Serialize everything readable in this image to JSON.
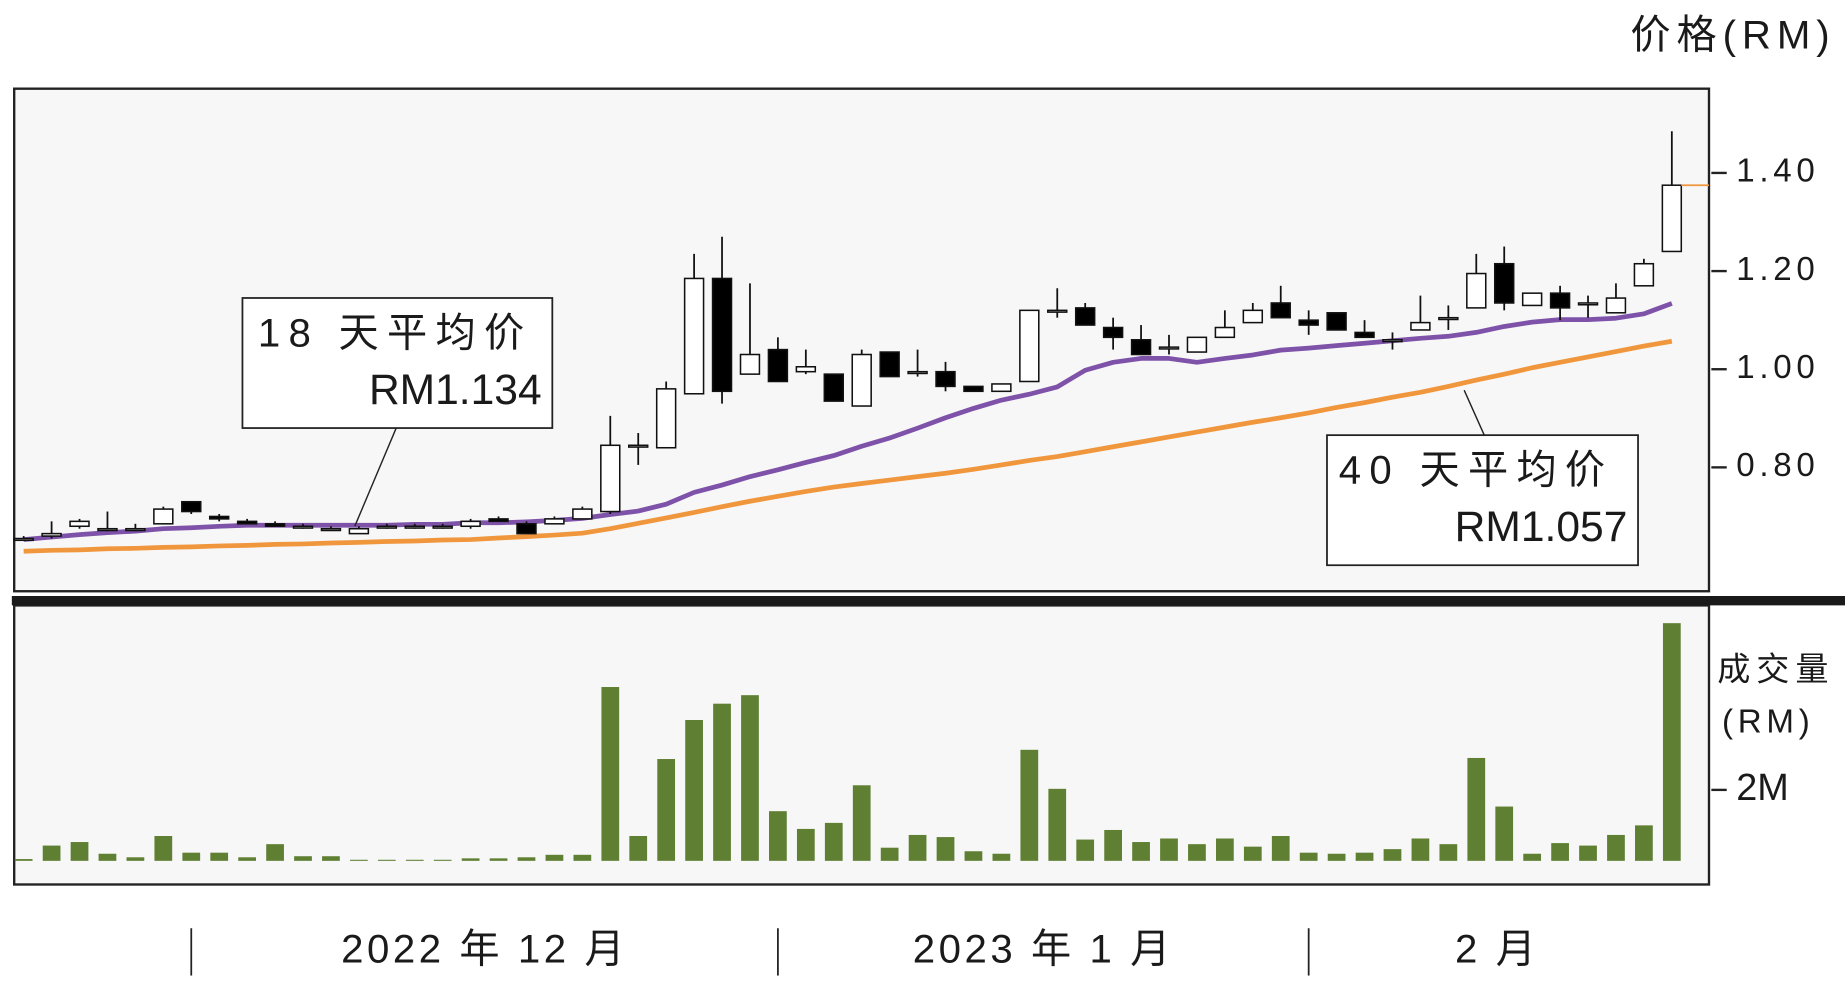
{
  "chart_data": [
    {
      "type": "candlestick",
      "title": "价格(RM)",
      "categories": [
        null,
        null,
        null,
        null,
        null,
        null,
        null,
        null,
        null,
        null,
        null,
        null,
        null,
        null,
        null,
        null,
        null,
        null,
        null,
        null,
        null,
        null,
        null,
        null,
        null,
        null,
        null,
        null,
        null,
        null,
        null,
        null,
        null,
        null,
        null,
        null,
        null,
        null,
        null,
        null,
        null,
        null,
        null,
        null,
        null,
        null,
        null,
        null,
        null,
        null,
        null,
        null,
        null,
        null,
        null,
        null,
        null,
        null,
        null,
        null
      ],
      "open": [
        0.655,
        0.66,
        0.68,
        0.675,
        0.675,
        0.685,
        0.73,
        0.7,
        0.69,
        0.685,
        0.68,
        0.675,
        0.665,
        0.68,
        0.68,
        0.68,
        0.68,
        0.695,
        0.685,
        0.685,
        0.695,
        0.71,
        0.845,
        0.84,
        0.95,
        1.185,
        0.99,
        1.04,
        0.995,
        0.99,
        0.925,
        1.035,
        0.995,
        0.995,
        0.965,
        0.955,
        0.975,
        1.12,
        1.125,
        1.085,
        1.06,
        1.045,
        1.035,
        1.065,
        1.095,
        1.135,
        1.1,
        1.115,
        1.075,
        1.06,
        1.08,
        1.105,
        1.125,
        1.215,
        1.13,
        1.155,
        1.135,
        1.115,
        1.17,
        1.24
      ],
      "high": [
        0.66,
        0.69,
        0.695,
        0.71,
        0.685,
        0.72,
        0.73,
        0.705,
        0.695,
        0.69,
        0.685,
        0.68,
        0.68,
        0.685,
        0.685,
        0.685,
        0.695,
        0.7,
        0.69,
        0.7,
        0.72,
        0.905,
        0.87,
        0.975,
        1.235,
        1.27,
        1.175,
        1.065,
        1.04,
        0.99,
        1.04,
        1.035,
        1.04,
        1.015,
        0.965,
        0.97,
        1.12,
        1.165,
        1.135,
        1.105,
        1.09,
        1.07,
        1.065,
        1.12,
        1.135,
        1.17,
        1.12,
        1.115,
        1.1,
        1.075,
        1.15,
        1.13,
        1.235,
        1.25,
        1.155,
        1.17,
        1.15,
        1.175,
        1.225,
        1.485
      ],
      "low": [
        0.65,
        0.655,
        0.675,
        0.67,
        0.67,
        0.685,
        0.705,
        0.69,
        0.685,
        0.68,
        0.675,
        0.675,
        0.665,
        0.675,
        0.675,
        0.675,
        0.675,
        0.69,
        0.665,
        0.685,
        0.695,
        0.705,
        0.805,
        0.84,
        0.95,
        0.93,
        0.99,
        0.975,
        0.99,
        0.935,
        0.925,
        0.985,
        0.985,
        0.955,
        0.955,
        0.955,
        0.975,
        1.105,
        1.09,
        1.04,
        1.03,
        1.03,
        1.035,
        1.065,
        1.095,
        1.105,
        1.07,
        1.08,
        1.065,
        1.04,
        1.08,
        1.08,
        1.125,
        1.12,
        1.13,
        1.1,
        1.105,
        1.115,
        1.17,
        1.24
      ],
      "close": [
        0.655,
        0.665,
        0.69,
        0.675,
        0.675,
        0.715,
        0.71,
        0.695,
        0.685,
        0.68,
        0.68,
        0.675,
        0.675,
        0.68,
        0.68,
        0.68,
        0.69,
        0.69,
        0.665,
        0.695,
        0.715,
        0.845,
        0.845,
        0.96,
        1.185,
        0.955,
        1.03,
        0.975,
        1.005,
        0.935,
        1.03,
        0.985,
        0.995,
        0.965,
        0.955,
        0.97,
        1.12,
        1.12,
        1.09,
        1.065,
        1.03,
        1.045,
        1.065,
        1.085,
        1.12,
        1.105,
        1.09,
        1.08,
        1.065,
        1.06,
        1.095,
        1.105,
        1.195,
        1.135,
        1.155,
        1.125,
        1.135,
        1.145,
        1.215,
        1.375
      ],
      "up_color": "#ffffff",
      "down_color": "#000000",
      "last_price_color": "#f0963c",
      "series": [
        {
          "name": "18 天平均价",
          "value_label": "RM1.134",
          "color": "#7d52a8",
          "values": [
            0.653,
            0.658,
            0.663,
            0.667,
            0.67,
            0.675,
            0.677,
            0.68,
            0.682,
            0.682,
            0.682,
            0.682,
            0.682,
            0.682,
            0.684,
            0.684,
            0.687,
            0.687,
            0.689,
            0.692,
            0.696,
            0.704,
            0.711,
            0.725,
            0.749,
            0.764,
            0.781,
            0.795,
            0.81,
            0.824,
            0.843,
            0.86,
            0.88,
            0.901,
            0.92,
            0.937,
            0.949,
            0.964,
            0.998,
            1.014,
            1.022,
            1.022,
            1.014,
            1.022,
            1.029,
            1.039,
            1.043,
            1.048,
            1.053,
            1.058,
            1.063,
            1.067,
            1.075,
            1.087,
            1.096,
            1.101,
            1.101,
            1.104,
            1.113,
            1.134
          ]
        },
        {
          "name": "40 天平均价",
          "value_label": "RM1.057",
          "color": "#f0963c",
          "values": [
            0.629,
            0.631,
            0.632,
            0.634,
            0.635,
            0.637,
            0.638,
            0.64,
            0.641,
            0.643,
            0.644,
            0.646,
            0.647,
            0.649,
            0.65,
            0.652,
            0.653,
            0.656,
            0.659,
            0.662,
            0.666,
            0.675,
            0.686,
            0.697,
            0.708,
            0.72,
            0.731,
            0.741,
            0.751,
            0.76,
            0.767,
            0.774,
            0.781,
            0.788,
            0.796,
            0.805,
            0.814,
            0.822,
            0.832,
            0.842,
            0.852,
            0.862,
            0.872,
            0.882,
            0.892,
            0.901,
            0.911,
            0.922,
            0.932,
            0.943,
            0.953,
            0.965,
            0.978,
            0.99,
            1.003,
            1.014,
            1.025,
            1.036,
            1.047,
            1.057
          ]
        }
      ],
      "ylim": [
        0.55,
        1.57
      ],
      "yticks": [
        {
          "value": 1.4,
          "label": "1.40"
        },
        {
          "value": 1.2,
          "label": "1.20"
        },
        {
          "value": 1,
          "label": "1.00"
        },
        {
          "value": 0.8,
          "label": "0.80"
        }
      ]
    },
    {
      "type": "bar",
      "title": "成交量",
      "subtitle": "(RM)",
      "categories": [
        null,
        null,
        null,
        null,
        null,
        null,
        null,
        null,
        null,
        null,
        null,
        null,
        null,
        null,
        null,
        null,
        null,
        null,
        null,
        null,
        null,
        null,
        null,
        null,
        null,
        null,
        null,
        null,
        null,
        null,
        null,
        null,
        null,
        null,
        null,
        null,
        null,
        null,
        null,
        null,
        null,
        null,
        null,
        null,
        null,
        null,
        null,
        null,
        null,
        null,
        null,
        null,
        null,
        null,
        null,
        null,
        null,
        null,
        null,
        null
      ],
      "values": [
        50000,
        430000,
        530000,
        200000,
        100000,
        700000,
        230000,
        230000,
        100000,
        470000,
        130000,
        130000,
        30000,
        30000,
        30000,
        30000,
        70000,
        70000,
        100000,
        170000,
        170000,
        4900000,
        700000,
        2870000,
        3970000,
        4430000,
        4670000,
        1400000,
        900000,
        1070000,
        2130000,
        370000,
        730000,
        670000,
        270000,
        200000,
        3130000,
        2030000,
        600000,
        870000,
        530000,
        630000,
        470000,
        630000,
        400000,
        700000,
        230000,
        200000,
        230000,
        330000,
        630000,
        470000,
        2900000,
        1530000,
        200000,
        500000,
        430000,
        730000,
        1000000,
        6700000
      ],
      "color": "#5f7f32",
      "ylim": [
        0,
        7200000
      ],
      "yticks": [
        {
          "value": 2000000,
          "label": "2M"
        }
      ],
      "x_groups": [
        "2022 年 12 月",
        "2023 年 1 月",
        "2 月"
      ]
    }
  ]
}
